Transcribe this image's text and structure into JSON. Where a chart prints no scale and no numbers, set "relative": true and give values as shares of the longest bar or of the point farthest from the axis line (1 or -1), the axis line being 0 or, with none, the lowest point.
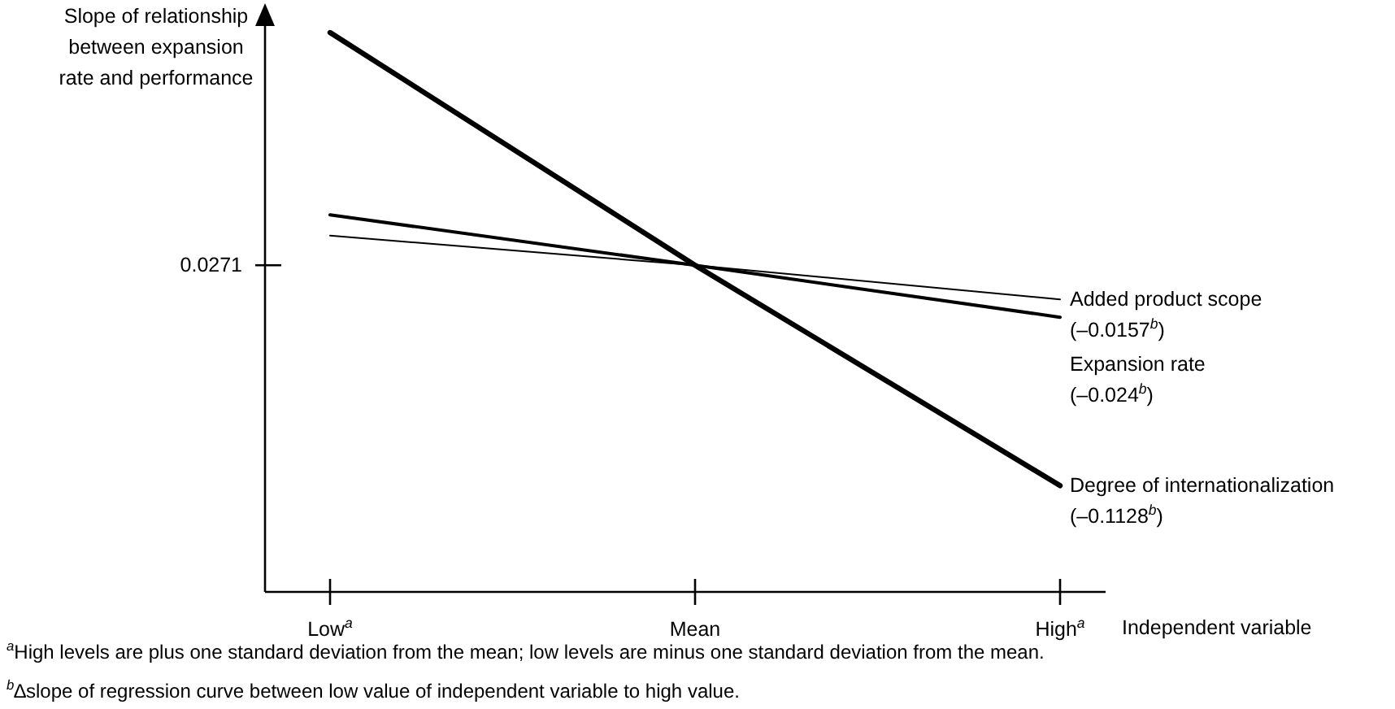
{
  "chart_data": {
    "type": "line",
    "relative": true,
    "ylabel": "Slope of relationship\nbetween expansion\nrate and performance",
    "xlabel": "Independent variable",
    "categories": [
      "Low$^{a}$",
      "Mean",
      "High$^{a}$"
    ],
    "series": [
      {
        "name": "Added product scope\n(–0.0157$^{b}$)",
        "color": "#000000",
        "values": [
          0.637,
          0.584,
          0.523
        ]
      },
      {
        "name": "Expansion rate\n(–0.024$^{b}$)",
        "color": "#000000",
        "values": [
          0.674,
          0.584,
          0.491
        ]
      },
      {
        "name": "Degree of internationalization\n(–0.1128$^{b}$)",
        "color": "#000000",
        "values": [
          1,
          0.584,
          0.19
        ]
      }
    ],
    "annotations": [
      "0.0271",
      "$^{a}$High levels are plus one standard deviation from the mean; low levels are minus one standard deviation from the mean.",
      "$^{b}$∆slope of regression curve between low value of  independent variable to high value."
    ]
  }
}
